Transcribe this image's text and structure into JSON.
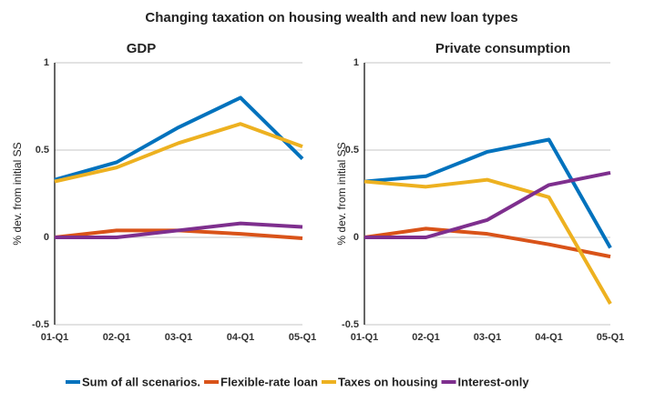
{
  "title": "Changing taxation on housing wealth and new loan types",
  "chart_data": [
    {
      "type": "line",
      "title": "GDP",
      "ylabel": "% dev. from initial SS",
      "categories": [
        "01-Q1",
        "02-Q1",
        "03-Q1",
        "04-Q1",
        "05-Q1"
      ],
      "ylim": [
        -0.5,
        1
      ],
      "yticks": [
        -0.5,
        0,
        0.5,
        1
      ],
      "grid": true,
      "series": [
        {
          "name": "Sum of all scenarios.",
          "color": "#0072bd",
          "values": [
            0.33,
            0.43,
            0.63,
            0.8,
            0.45
          ]
        },
        {
          "name": "Flexible-rate loan",
          "color": "#d95319",
          "values": [
            0,
            0.04,
            0.04,
            0.02,
            -0.005
          ]
        },
        {
          "name": "Taxes on housing",
          "color": "#edb120",
          "values": [
            0.32,
            0.4,
            0.54,
            0.65,
            0.52
          ]
        },
        {
          "name": "Interest-only",
          "color": "#7e2f8e",
          "values": [
            0,
            0,
            0.04,
            0.08,
            0.06
          ]
        }
      ]
    },
    {
      "type": "line",
      "title": "Private consumption",
      "ylabel": "% dev. from initial SS",
      "categories": [
        "01-Q1",
        "02-Q1",
        "03-Q1",
        "04-Q1",
        "05-Q1"
      ],
      "ylim": [
        -0.5,
        1
      ],
      "yticks": [
        -0.5,
        0,
        0.5,
        1
      ],
      "grid": true,
      "series": [
        {
          "name": "Sum of all scenarios.",
          "color": "#0072bd",
          "values": [
            0.32,
            0.35,
            0.49,
            0.56,
            -0.06
          ]
        },
        {
          "name": "Flexible-rate loan",
          "color": "#d95319",
          "values": [
            0,
            0.05,
            0.02,
            -0.04,
            -0.11
          ]
        },
        {
          "name": "Taxes on housing",
          "color": "#edb120",
          "values": [
            0.32,
            0.29,
            0.33,
            0.23,
            -0.38
          ]
        },
        {
          "name": "Interest-only",
          "color": "#7e2f8e",
          "values": [
            0,
            0,
            0.1,
            0.3,
            0.37
          ]
        }
      ]
    }
  ]
}
